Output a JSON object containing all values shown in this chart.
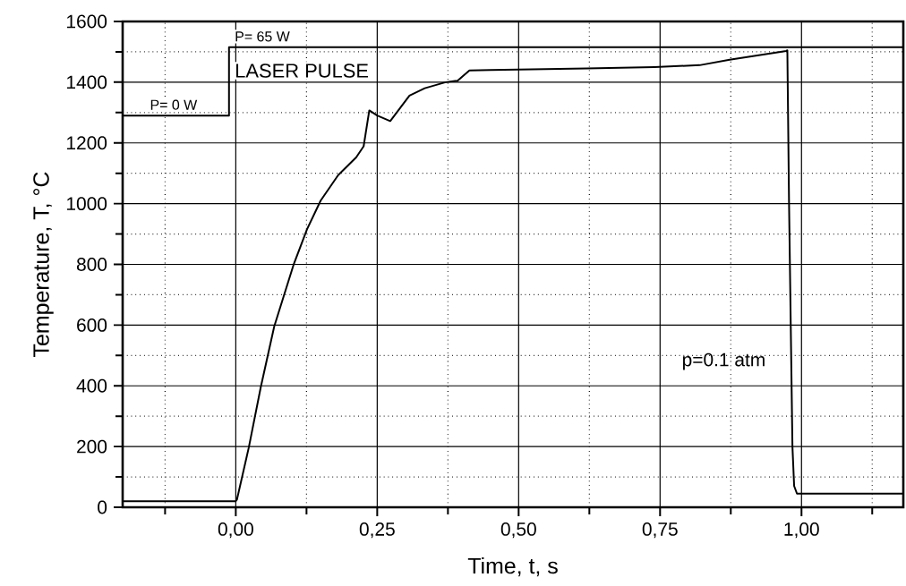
{
  "chart_data": {
    "type": "line",
    "xlabel": "Time,  t,  s",
    "ylabel": "Temperature,  T,  °C",
    "xlim": [
      -0.2,
      1.18
    ],
    "ylim": [
      0,
      1600
    ],
    "xticks": [
      {
        "value": -0.125,
        "label": null
      },
      {
        "value": 0,
        "label": "0,00"
      },
      {
        "value": 0.125,
        "label": null
      },
      {
        "value": 0.25,
        "label": "0,25"
      },
      {
        "value": 0.375,
        "label": null
      },
      {
        "value": 0.5,
        "label": "0,50"
      },
      {
        "value": 0.625,
        "label": null
      },
      {
        "value": 0.75,
        "label": "0,75"
      },
      {
        "value": 0.875,
        "label": null
      },
      {
        "value": 1,
        "label": "1,00"
      },
      {
        "value": 1.125,
        "label": null
      }
    ],
    "yticks": [
      0,
      {
        "value": 100,
        "label": null
      },
      200,
      {
        "value": 300,
        "label": null
      },
      400,
      {
        "value": 500,
        "label": null
      },
      600,
      {
        "value": 700,
        "label": null
      },
      800,
      {
        "value": 900,
        "label": null
      },
      1000,
      {
        "value": 1100,
        "label": null
      },
      1200,
      {
        "value": 1300,
        "label": null
      },
      1400,
      {
        "value": 1500,
        "label": null
      },
      1600
    ],
    "grid": true,
    "legend": false,
    "marker": "none",
    "line_style": "solid",
    "series": [
      {
        "color": "#000000",
        "x": [
          -0.2,
          0.0,
          0.002,
          0.023,
          0.044,
          0.068,
          0.102,
          0.126,
          0.15,
          0.181,
          0.213,
          0.226,
          0.236,
          0.25,
          0.273,
          0.307,
          0.334,
          0.371,
          0.392,
          0.413,
          0.45,
          0.62,
          0.74,
          0.82,
          0.873,
          0.973,
          0.975,
          0.978,
          0.984,
          0.987,
          0.992,
          1.18
        ],
        "values": [
          20,
          20,
          25,
          197,
          394,
          596,
          798,
          916,
          1010,
          1094,
          1153,
          1189,
          1307,
          1290,
          1272,
          1356,
          1380,
          1400,
          1405,
          1439,
          1440,
          1445,
          1450,
          1456,
          1474,
          1503,
          1505,
          1000,
          200,
          70,
          45,
          45
        ]
      },
      {
        "name": "LASER PULSE",
        "color": "#000000",
        "x": [
          -0.2,
          -0.012,
          -0.012,
          1.18
        ],
        "values": [
          1290,
          1290,
          1515,
          1515
        ]
      }
    ],
    "annotations": [
      {
        "text": "P= 0 W",
        "x": -0.11,
        "y": 1290
      },
      {
        "text": "P= 65 W",
        "x": -0.012,
        "y": 1515
      },
      "p=0.1 atm"
    ]
  }
}
